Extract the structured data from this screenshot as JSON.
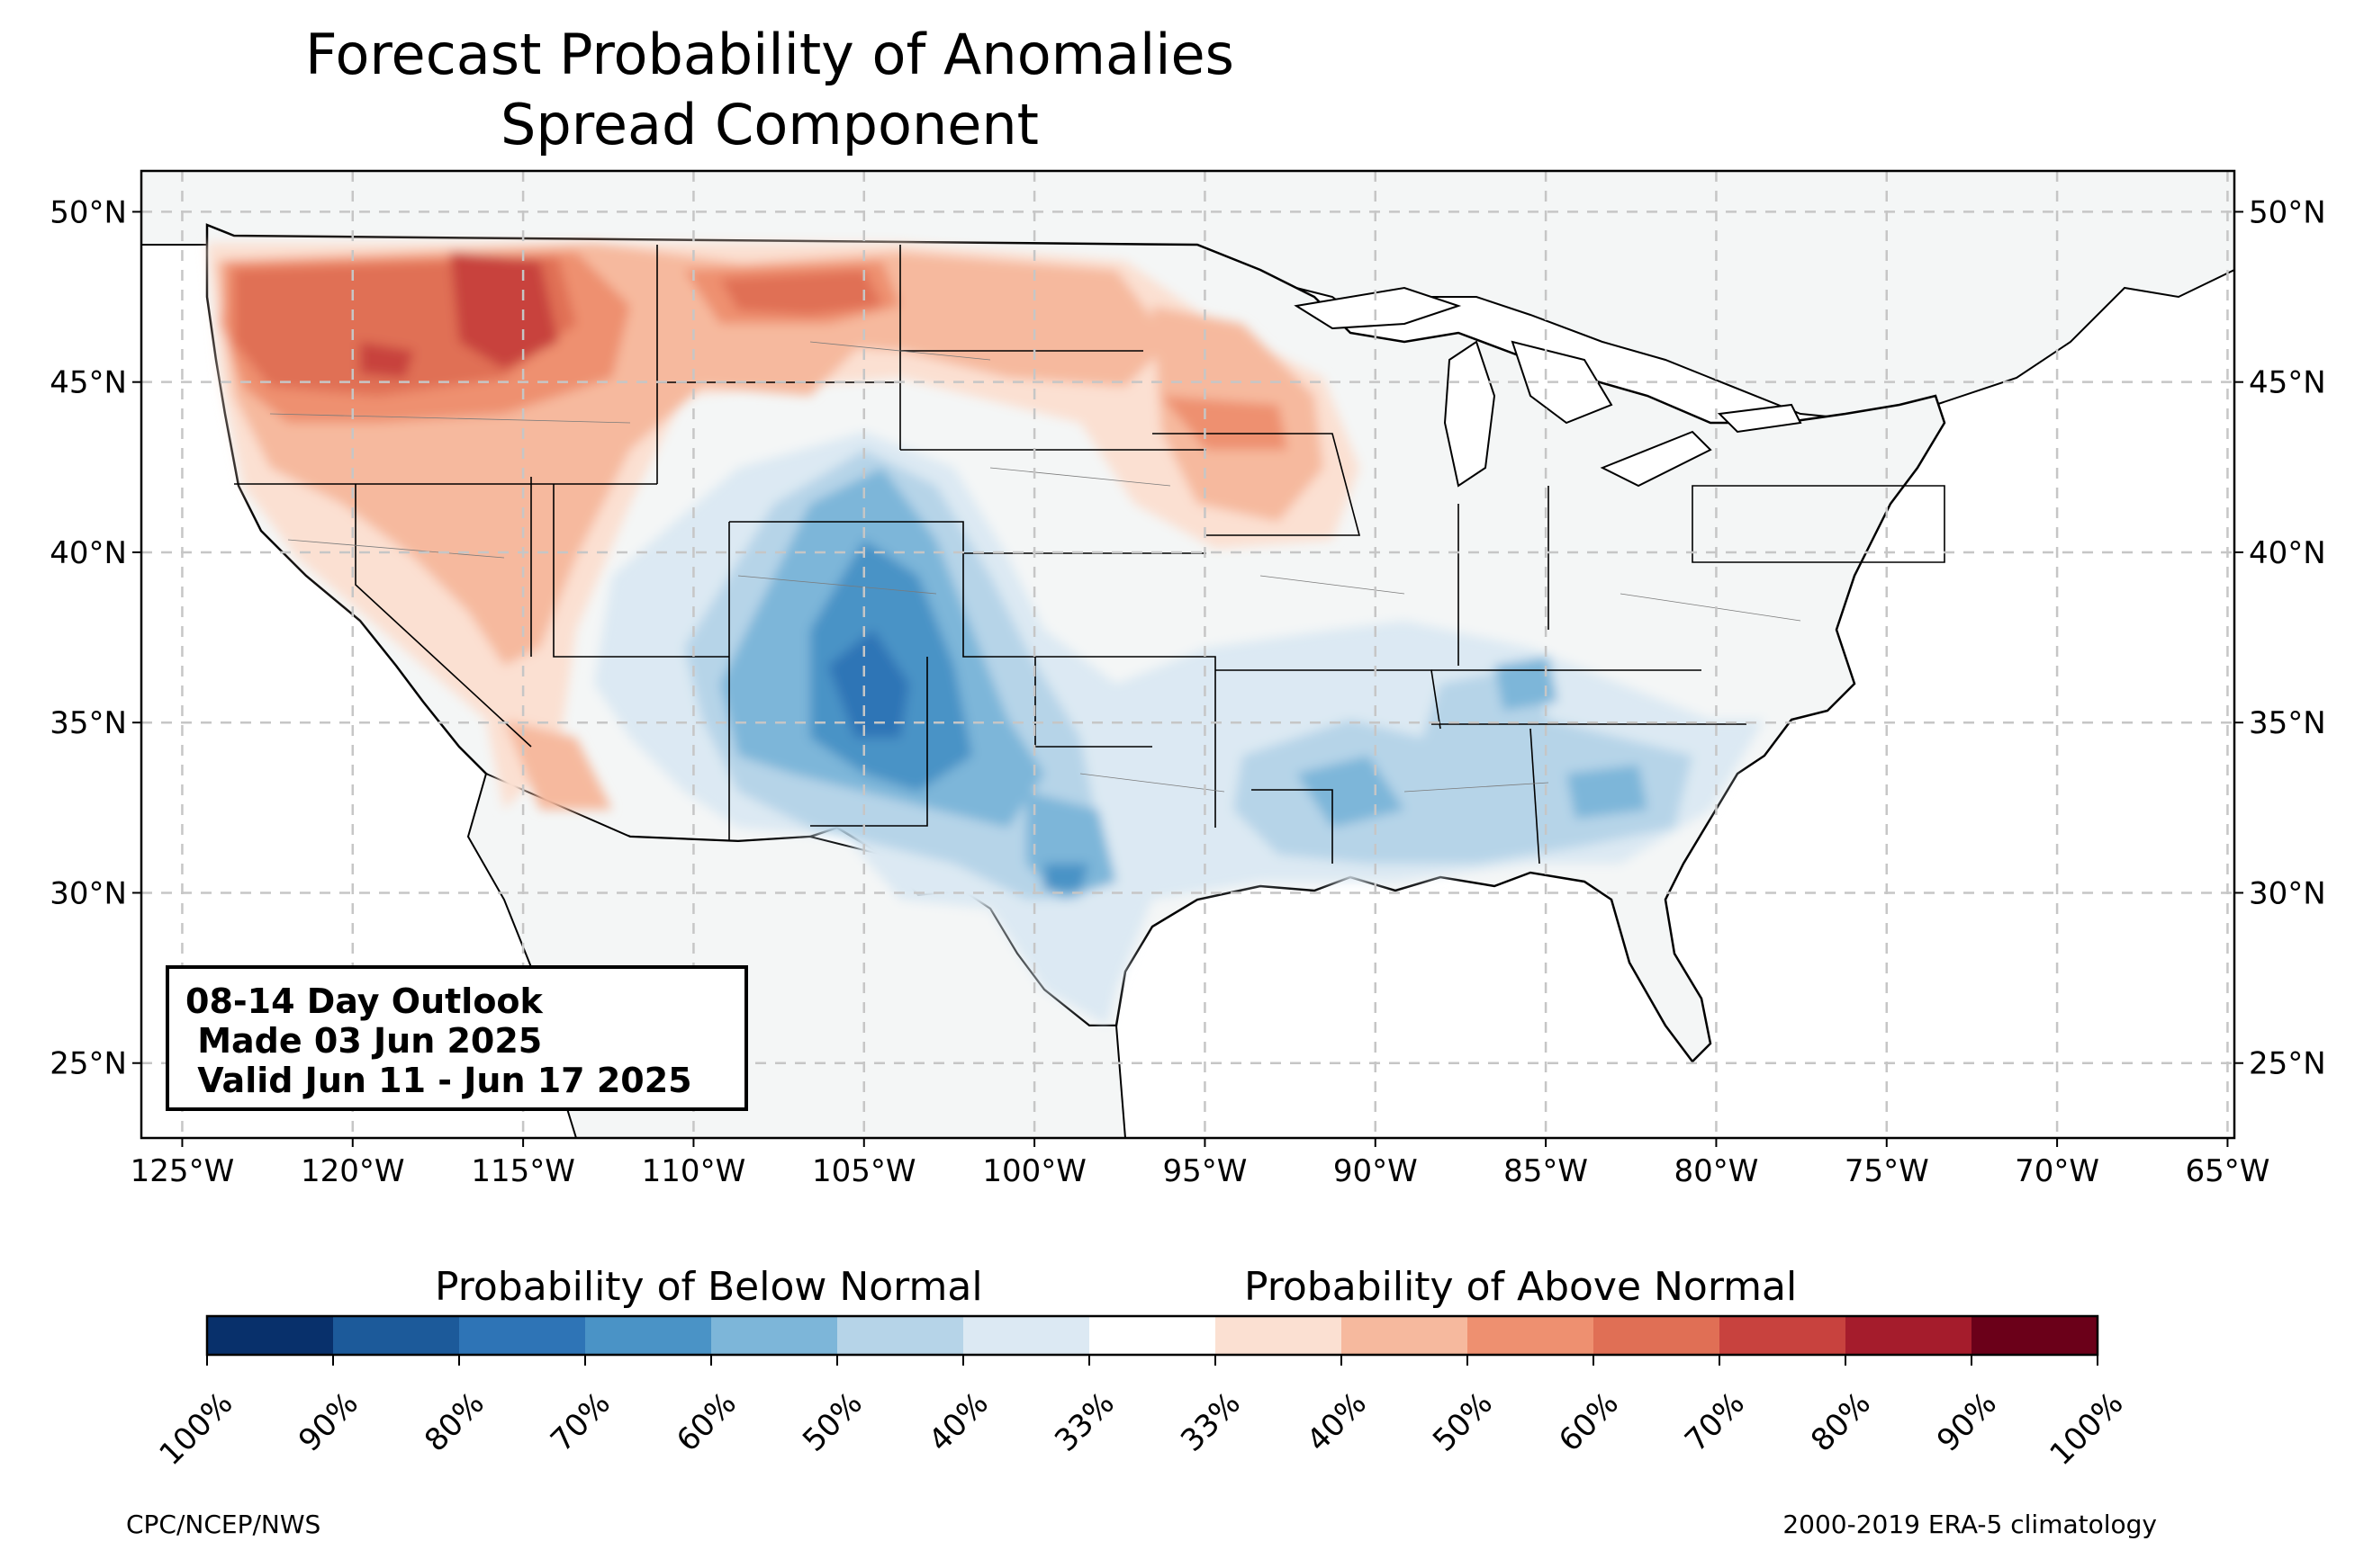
{
  "title": {
    "line1": "Forecast Probability of Anomalies",
    "line2": "Spread Component"
  },
  "map": {
    "lon_range": [
      -126.2,
      -64.8
    ],
    "lat_range": [
      22.8,
      51.2
    ],
    "lon_ticks": [
      "125°W",
      "120°W",
      "115°W",
      "110°W",
      "105°W",
      "100°W",
      "95°W",
      "90°W",
      "85°W",
      "80°W",
      "75°W",
      "70°W",
      "65°W"
    ],
    "lat_ticks": [
      "25°N",
      "30°N",
      "35°N",
      "40°N",
      "45°N",
      "50°N"
    ],
    "gridlines": true,
    "land_color": "#f4f6f6",
    "above_normal_regions": [
      "Pacific Northwest",
      "Northern Rockies",
      "Great Basin",
      "Northern Plains",
      "Upper Midwest"
    ],
    "below_normal_regions": [
      "Southern Rockies",
      "Southern Plains",
      "Lower Mississippi Valley",
      "Southeast"
    ]
  },
  "legend_box": {
    "line1": "08-14 Day Outlook",
    "line2": " Made 03 Jun 2025",
    "line3": " Valid Jun 11 - Jun 17 2025"
  },
  "colorbar": {
    "below_label": "Probability of Below Normal",
    "above_label": "Probability of Above Normal",
    "tick_labels": [
      "100%",
      "90%",
      "80%",
      "70%",
      "60%",
      "50%",
      "40%",
      "33%",
      "33%",
      "40%",
      "50%",
      "60%",
      "70%",
      "80%",
      "90%",
      "100%"
    ],
    "colors": [
      "#08306b",
      "#1c5a9a",
      "#2e74b6",
      "#4a93c6",
      "#7db6d9",
      "#b6d4e8",
      "#dce9f3",
      "#ffffff",
      "#fbe0d2",
      "#f6b99e",
      "#ee9070",
      "#e06f55",
      "#c8423e",
      "#a51c2c",
      "#6b0019"
    ]
  },
  "credits": {
    "left": "CPC/NCEP/NWS",
    "right": "2000-2019 ERA-5 climatology"
  }
}
